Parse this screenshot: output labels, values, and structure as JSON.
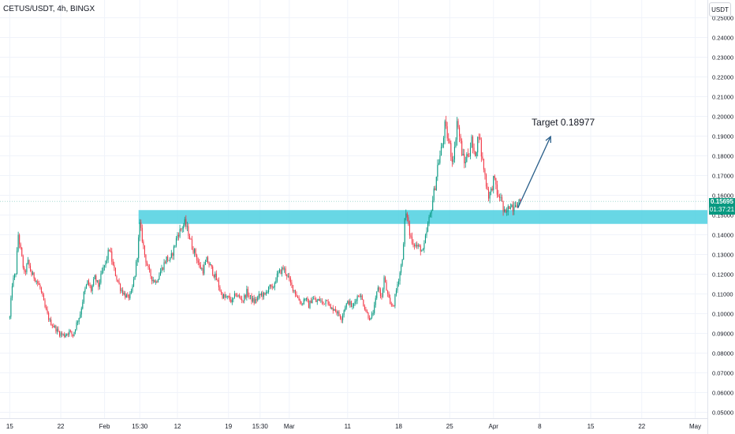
{
  "header": {
    "symbol": "CETUS/USDT, 4h, BINGX",
    "currency": "USDT"
  },
  "last_price": {
    "value": "0.15695",
    "countdown": "01:37:21",
    "color": "#089981"
  },
  "colors": {
    "up": "#089981",
    "down": "#f23645",
    "zone": "#4dd0e1",
    "arrow": "#2a5f8a",
    "axis_text": "#131722"
  },
  "chart_data": {
    "type": "candlestick",
    "title": "",
    "xlabel": "",
    "ylabel": "",
    "ylim": [
      0.047,
      0.259
    ],
    "y_ticks": [
      "0.25000",
      "0.24000",
      "0.23000",
      "0.22000",
      "0.21000",
      "0.20000",
      "0.19000",
      "0.18000",
      "0.17000",
      "0.16000",
      "0.15000",
      "0.14000",
      "0.13000",
      "0.12000",
      "0.11000",
      "0.10000",
      "0.09000",
      "0.08000",
      "0.07000",
      "0.06000",
      "0.05000"
    ],
    "x_ticks": [
      {
        "label": "15",
        "idx": 0
      },
      {
        "label": "22",
        "idx": 42
      },
      {
        "label": "Feb",
        "idx": 78
      },
      {
        "label": "15:30",
        "idx": 107
      },
      {
        "label": "12",
        "idx": 138
      },
      {
        "label": "19",
        "idx": 180
      },
      {
        "label": "15:30",
        "idx": 206
      },
      {
        "label": "Mar",
        "idx": 230
      },
      {
        "label": "11",
        "idx": 278
      },
      {
        "label": "18",
        "idx": 320
      },
      {
        "label": "25",
        "idx": 362
      },
      {
        "label": "Apr",
        "idx": 398
      },
      {
        "label": "8",
        "idx": 436
      },
      {
        "label": "15",
        "idx": 478
      },
      {
        "label": "22",
        "idx": 520
      },
      {
        "label": "May",
        "idx": 564
      }
    ],
    "x_axis_range_idx": [
      -8,
      574
    ],
    "support_zone": {
      "from": 0.1455,
      "to": 0.1525,
      "start_idx": 106,
      "end_idx": 574
    },
    "annotation": {
      "text": "Target 0.18977",
      "target": 0.18977
    },
    "arrow": {
      "from": {
        "idx": 418,
        "price": 0.1535
      },
      "to": {
        "idx": 445,
        "price": 0.18977
      }
    },
    "last_price_line": 0.15695,
    "close_path": [
      [
        0,
        0.098
      ],
      [
        2,
        0.115
      ],
      [
        5,
        0.121
      ],
      [
        7,
        0.14
      ],
      [
        9,
        0.132
      ],
      [
        12,
        0.12
      ],
      [
        15,
        0.126
      ],
      [
        18,
        0.12
      ],
      [
        21,
        0.118
      ],
      [
        25,
        0.113
      ],
      [
        29,
        0.103
      ],
      [
        33,
        0.096
      ],
      [
        37,
        0.093
      ],
      [
        41,
        0.09
      ],
      [
        45,
        0.089
      ],
      [
        49,
        0.091
      ],
      [
        52,
        0.089
      ],
      [
        55,
        0.095
      ],
      [
        58,
        0.1
      ],
      [
        61,
        0.11
      ],
      [
        64,
        0.116
      ],
      [
        67,
        0.112
      ],
      [
        70,
        0.118
      ],
      [
        73,
        0.114
      ],
      [
        76,
        0.121
      ],
      [
        79,
        0.126
      ],
      [
        82,
        0.133
      ],
      [
        85,
        0.124
      ],
      [
        88,
        0.118
      ],
      [
        91,
        0.113
      ],
      [
        94,
        0.11
      ],
      [
        97,
        0.108
      ],
      [
        100,
        0.11
      ],
      [
        103,
        0.12
      ],
      [
        105,
        0.13
      ],
      [
        107,
        0.145
      ],
      [
        109,
        0.138
      ],
      [
        111,
        0.13
      ],
      [
        114,
        0.122
      ],
      [
        117,
        0.118
      ],
      [
        120,
        0.116
      ],
      [
        123,
        0.12
      ],
      [
        126,
        0.124
      ],
      [
        129,
        0.128
      ],
      [
        132,
        0.127
      ],
      [
        135,
        0.133
      ],
      [
        138,
        0.14
      ],
      [
        141,
        0.143
      ],
      [
        144,
        0.146
      ],
      [
        147,
        0.141
      ],
      [
        150,
        0.134
      ],
      [
        153,
        0.13
      ],
      [
        156,
        0.124
      ],
      [
        159,
        0.122
      ],
      [
        162,
        0.127
      ],
      [
        165,
        0.124
      ],
      [
        168,
        0.12
      ],
      [
        171,
        0.116
      ],
      [
        174,
        0.11
      ],
      [
        177,
        0.108
      ],
      [
        180,
        0.108
      ],
      [
        183,
        0.106
      ],
      [
        186,
        0.11
      ],
      [
        189,
        0.108
      ],
      [
        192,
        0.107
      ],
      [
        195,
        0.111
      ],
      [
        198,
        0.108
      ],
      [
        201,
        0.106
      ],
      [
        204,
        0.108
      ],
      [
        207,
        0.11
      ],
      [
        210,
        0.109
      ],
      [
        213,
        0.114
      ],
      [
        216,
        0.112
      ],
      [
        219,
        0.118
      ],
      [
        222,
        0.121
      ],
      [
        225,
        0.123
      ],
      [
        228,
        0.12
      ],
      [
        231,
        0.115
      ],
      [
        234,
        0.112
      ],
      [
        237,
        0.108
      ],
      [
        240,
        0.105
      ],
      [
        243,
        0.108
      ],
      [
        246,
        0.104
      ],
      [
        249,
        0.108
      ],
      [
        252,
        0.106
      ],
      [
        255,
        0.107
      ],
      [
        258,
        0.105
      ],
      [
        261,
        0.108
      ],
      [
        264,
        0.102
      ],
      [
        267,
        0.103
      ],
      [
        270,
        0.1
      ],
      [
        273,
        0.098
      ],
      [
        276,
        0.104
      ],
      [
        279,
        0.106
      ],
      [
        282,
        0.103
      ],
      [
        285,
        0.108
      ],
      [
        288,
        0.11
      ],
      [
        291,
        0.105
      ],
      [
        294,
        0.1
      ],
      [
        297,
        0.097
      ],
      [
        300,
        0.103
      ],
      [
        303,
        0.114
      ],
      [
        306,
        0.108
      ],
      [
        308,
        0.118
      ],
      [
        310,
        0.112
      ],
      [
        313,
        0.104
      ],
      [
        316,
        0.105
      ],
      [
        319,
        0.115
      ],
      [
        322,
        0.124
      ],
      [
        324,
        0.134
      ],
      [
        325,
        0.148
      ],
      [
        327,
        0.15
      ],
      [
        329,
        0.14
      ],
      [
        332,
        0.136
      ],
      [
        335,
        0.134
      ],
      [
        338,
        0.133
      ],
      [
        340,
        0.131
      ],
      [
        342,
        0.138
      ],
      [
        344,
        0.145
      ],
      [
        346,
        0.15
      ],
      [
        348,
        0.158
      ],
      [
        350,
        0.165
      ],
      [
        352,
        0.175
      ],
      [
        354,
        0.18
      ],
      [
        356,
        0.186
      ],
      [
        358,
        0.195
      ],
      [
        360,
        0.19
      ],
      [
        362,
        0.185
      ],
      [
        364,
        0.178
      ],
      [
        366,
        0.183
      ],
      [
        368,
        0.198
      ],
      [
        370,
        0.19
      ],
      [
        372,
        0.182
      ],
      [
        374,
        0.176
      ],
      [
        376,
        0.18
      ],
      [
        378,
        0.182
      ],
      [
        380,
        0.188
      ],
      [
        382,
        0.18
      ],
      [
        384,
        0.184
      ],
      [
        386,
        0.192
      ],
      [
        388,
        0.181
      ],
      [
        390,
        0.174
      ],
      [
        392,
        0.166
      ],
      [
        394,
        0.16
      ],
      [
        396,
        0.162
      ],
      [
        398,
        0.168
      ],
      [
        400,
        0.165
      ],
      [
        402,
        0.158
      ],
      [
        404,
        0.16
      ],
      [
        406,
        0.152
      ],
      [
        408,
        0.15
      ],
      [
        410,
        0.153
      ],
      [
        412,
        0.156
      ],
      [
        414,
        0.154
      ],
      [
        416,
        0.157
      ],
      [
        418,
        0.155
      ],
      [
        420,
        0.157
      ]
    ]
  }
}
